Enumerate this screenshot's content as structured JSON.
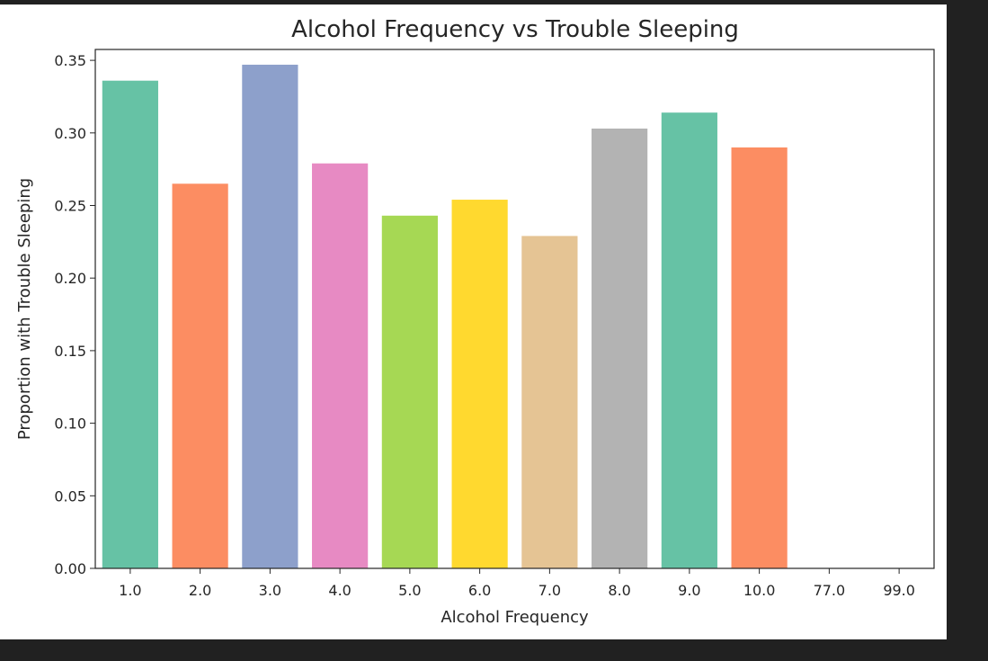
{
  "chart_data": {
    "type": "bar",
    "title": "Alcohol Frequency vs Trouble Sleeping",
    "xlabel": "Alcohol Frequency",
    "ylabel": "Proportion with Trouble Sleeping",
    "categories": [
      "1.0",
      "2.0",
      "3.0",
      "4.0",
      "5.0",
      "6.0",
      "7.0",
      "8.0",
      "9.0",
      "10.0",
      "77.0",
      "99.0"
    ],
    "values": [
      0.336,
      0.265,
      0.347,
      0.279,
      0.243,
      0.254,
      0.229,
      0.303,
      0.314,
      0.29,
      0,
      0
    ],
    "colors": [
      "#66c2a5",
      "#fc8d62",
      "#8da0cb",
      "#e78ac3",
      "#a6d854",
      "#ffd92f",
      "#e5c494",
      "#b3b3b3",
      "#66c2a5",
      "#fc8d62",
      "#8da0cb",
      "#e78ac3"
    ],
    "ylim": [
      0,
      0.3575
    ],
    "yticks": [
      0.0,
      0.05,
      0.1,
      0.15,
      0.2,
      0.25,
      0.3,
      0.35
    ],
    "ytick_labels": [
      "0.00",
      "0.05",
      "0.10",
      "0.15",
      "0.20",
      "0.25",
      "0.30",
      "0.35"
    ],
    "grid": false,
    "legend": "none"
  }
}
